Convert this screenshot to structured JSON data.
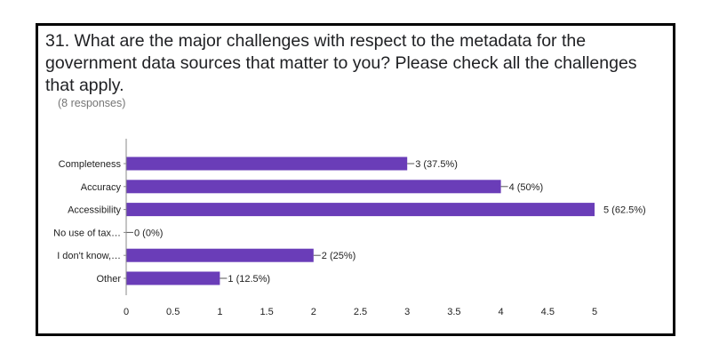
{
  "header": {
    "title": "31. What are the major challenges with respect to the metadata for the government data sources that matter to you? Please check all the challenges that apply.",
    "responses": "(8 responses)"
  },
  "colors": {
    "bar": "#6a3db8",
    "axis": "#888888",
    "leader": "#555555"
  },
  "chart_data": {
    "type": "bar",
    "orientation": "horizontal",
    "categories": [
      "Completeness",
      "Accuracy",
      "Accessibility",
      "No use of tax…",
      "I don't know,…",
      "Other"
    ],
    "values": [
      3,
      4,
      5,
      0,
      2,
      1
    ],
    "data_labels": [
      "3 (37.5%)",
      "4 (50%)",
      "5 (62.5%)",
      "0 (0%)",
      "2 (25%)",
      "1 (12.5%)"
    ],
    "xlim": [
      0,
      5
    ],
    "xticks": [
      "0",
      "0.5",
      "1",
      "1.5",
      "2",
      "2.5",
      "3",
      "3.5",
      "4",
      "4.5",
      "5"
    ],
    "grid": false,
    "legend": "none"
  }
}
